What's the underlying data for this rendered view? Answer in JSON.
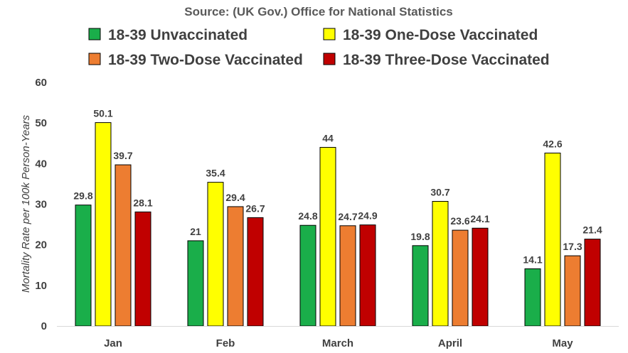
{
  "chart_data": {
    "type": "bar",
    "title": "Source: (UK Gov.) Office for National Statistics",
    "ylabel": "Mortality Rate per 100k Person-Years",
    "xlabel": "",
    "ylim": [
      0,
      60
    ],
    "yticks": [
      0,
      10,
      20,
      30,
      40,
      50,
      60
    ],
    "grid": false,
    "legend_position": "top",
    "categories": [
      "Jan",
      "Feb",
      "March",
      "April",
      "May"
    ],
    "series": [
      {
        "name": "18-39 Unvaccinated",
        "color": "#1AAE4A",
        "values": [
          29.8,
          21,
          24.8,
          19.8,
          14.1
        ]
      },
      {
        "name": "18-39 One-Dose Vaccinated",
        "color": "#FFFF00",
        "values": [
          50.1,
          35.4,
          44,
          30.7,
          42.6
        ]
      },
      {
        "name": "18-39 Two-Dose Vaccinated",
        "color": "#ED7D31",
        "values": [
          39.7,
          29.4,
          24.7,
          23.6,
          17.3
        ]
      },
      {
        "name": "18-39 Three-Dose Vaccinated",
        "color": "#C00000",
        "values": [
          28.1,
          26.7,
          24.9,
          24.1,
          21.4
        ]
      }
    ]
  }
}
